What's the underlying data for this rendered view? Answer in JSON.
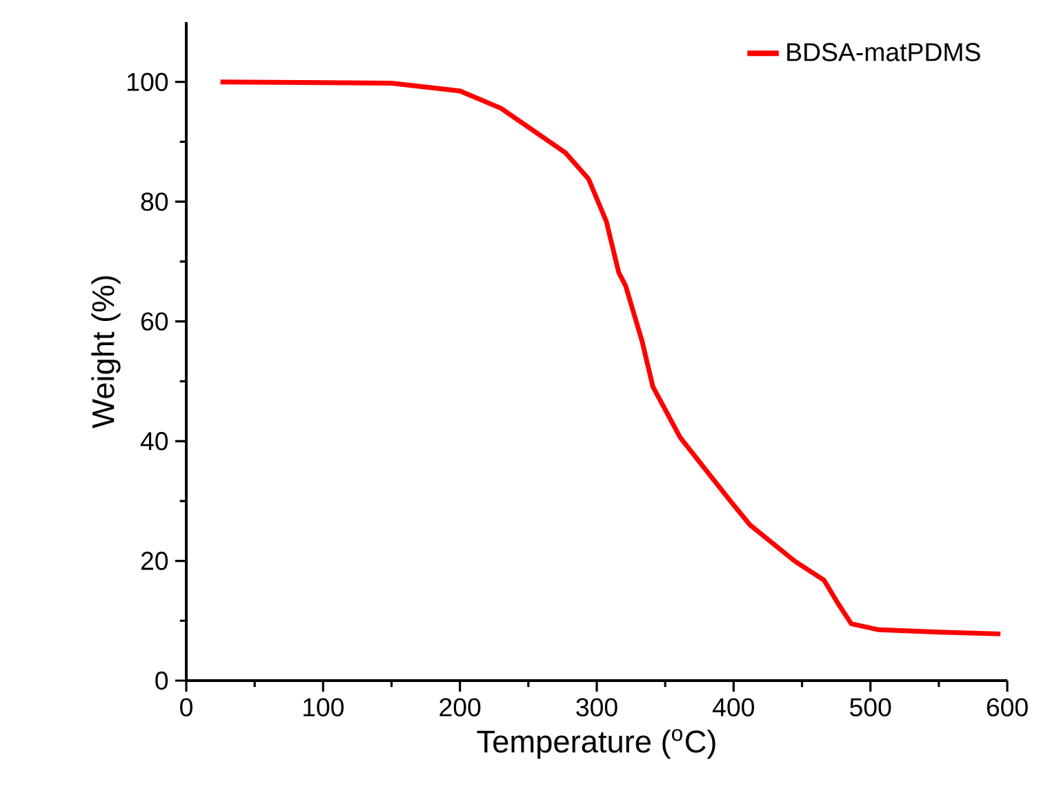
{
  "chart_data": {
    "type": "line",
    "xlabel": "Temperature ($^{o}$C)",
    "ylabel": "Weight (%)",
    "x": [
      25,
      150,
      200,
      230,
      277,
      294,
      307,
      316,
      321,
      333,
      341,
      361,
      398,
      412,
      445,
      466,
      476,
      486,
      506,
      550,
      595
    ],
    "series": [
      {
        "name": "BDSA-matPDMS",
        "color": "#ff0000",
        "values": [
          100,
          99.8,
          98.5,
          95.6,
          88.2,
          83.8,
          76.7,
          68.2,
          66.0,
          56.8,
          49.1,
          40.6,
          29.9,
          26.0,
          19.9,
          16.8,
          13.0,
          9.5,
          8.5,
          8.1,
          7.8
        ]
      }
    ],
    "xlim": [
      0,
      600
    ],
    "ylim": [
      0,
      110
    ],
    "xticks": [
      0,
      100,
      200,
      300,
      400,
      500,
      600
    ],
    "yticks": [
      0,
      20,
      40,
      60,
      80,
      100
    ],
    "legend": "top right",
    "grid": false,
    "marker": "none",
    "line_style": "solid"
  }
}
